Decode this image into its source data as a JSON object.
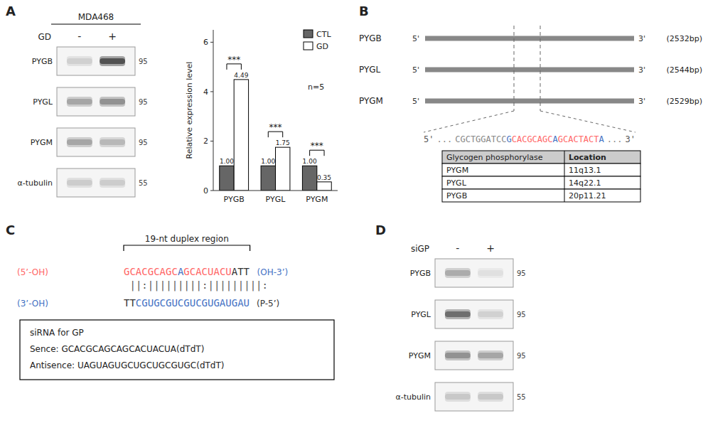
{
  "chart_data": [
    {
      "type": "western_blot",
      "title": "MDA468",
      "annotations": [
        "A",
        "GD"
      ],
      "categories": [
        "PYGB",
        "PYGL",
        "PYGM",
        "α-tubulin"
      ],
      "values": [
        95,
        95,
        95,
        55
      ],
      "series": [
        {
          "name": "-",
          "colors": [
            "#d0d0d0",
            "#a6a6a6",
            "#a6a6a6",
            "#cccccc"
          ]
        },
        {
          "name": "+",
          "colors": [
            "#525252",
            "#929292",
            "#b8b8b8",
            "#cccccc"
          ]
        }
      ]
    },
    {
      "type": "bar",
      "categories": [
        "PYGB",
        "PYGL",
        "PYGM"
      ],
      "series": [
        {
          "name": "CTL",
          "color": "#666666",
          "values": [
            1.0,
            1.0,
            1.0
          ],
          "value_labels": [
            "1.00",
            "1.00",
            "1.00"
          ]
        },
        {
          "name": "GD",
          "color": "#ffffff",
          "values": [
            4.49,
            1.75,
            0.35
          ],
          "value_labels": [
            "4.49",
            "1.75",
            "0.35"
          ]
        }
      ],
      "ylabel": "Relative expression level",
      "ylim": [
        0,
        6.5
      ],
      "yticks": [
        0,
        2,
        4,
        6
      ],
      "data_labels": true,
      "legend": "upper right",
      "grid": false,
      "annotations": [
        "n=5",
        "***",
        "***",
        "***"
      ]
    },
    {
      "type": "gene_map",
      "annotations": [
        "B",
        "5'",
        "3'"
      ],
      "categories": [
        "PYGB",
        "PYGL",
        "PYGM"
      ],
      "values": [
        2532,
        2544,
        2529
      ],
      "value_labels": [
        "(2532bp)",
        "(2544bp)",
        "(2529bp)"
      ]
    },
    {
      "type": "sequence",
      "categories": [
        "5'",
        "...",
        "CGCTGGATCC",
        "G",
        "CACGCAGC",
        "A",
        "GCACTACT",
        "A",
        "...",
        "3'"
      ],
      "colors": [
        "#555555",
        "#888888",
        "#888888",
        "#4472C4",
        "#FF6666",
        "#4472C4",
        "#FF6666",
        "#4472C4",
        "#888888",
        "#555555"
      ]
    },
    {
      "type": "table",
      "series": [
        {
          "name": "Glycogen phosphorylase",
          "values": [
            "PYGM",
            "PYGL",
            "PYGB"
          ]
        },
        {
          "name": "Location",
          "values": [
            "11q13.1",
            "14q22.1",
            "20p11.21"
          ]
        }
      ]
    },
    {
      "type": "sequence",
      "annotations": [
        "C",
        "19-nt duplex region"
      ],
      "categories": [
        "(5’-OH)",
        "G",
        "CACGCAGC",
        "A",
        "GCACUACU",
        "ATT",
        "(OH-3’)"
      ],
      "colors": [
        "#FF6666",
        "#FF6666",
        "#FF6666",
        "#4472C4",
        "#FF6666",
        "#333333",
        "#4472C4"
      ]
    },
    {
      "type": "sequence",
      "annotations": [
        "||:|||||||||:|||||||||:"
      ],
      "categories": [
        "(3’-OH)",
        "TT",
        "CGUGCGUCGUCGUGAUGAU",
        "(P-5’)"
      ],
      "colors": [
        "#4472C4",
        "#333333",
        "#4472C4",
        "#333333"
      ]
    },
    {
      "type": "text_box",
      "annotations": [
        "siRNA for GP",
        "Sence: GCACGCAGCAGCACUACUA(dTdT)",
        "Antisence: UAGUAGUGCUGCUGCGUGC(dTdT)"
      ]
    },
    {
      "type": "western_blot",
      "annotations": [
        "D",
        "siGP"
      ],
      "categories": [
        "PYGB",
        "PYGL",
        "PYGM",
        "α-tubulin"
      ],
      "values": [
        95,
        95,
        95,
        55
      ],
      "series": [
        {
          "name": "-",
          "colors": [
            "#acacac",
            "#6e6e6e",
            "#929292",
            "#c8c8c8"
          ]
        },
        {
          "name": "+",
          "colors": [
            "#e0e0e0",
            "#d1d1d1",
            "#a6a6a6",
            "#c8c8c8"
          ]
        }
      ]
    }
  ]
}
